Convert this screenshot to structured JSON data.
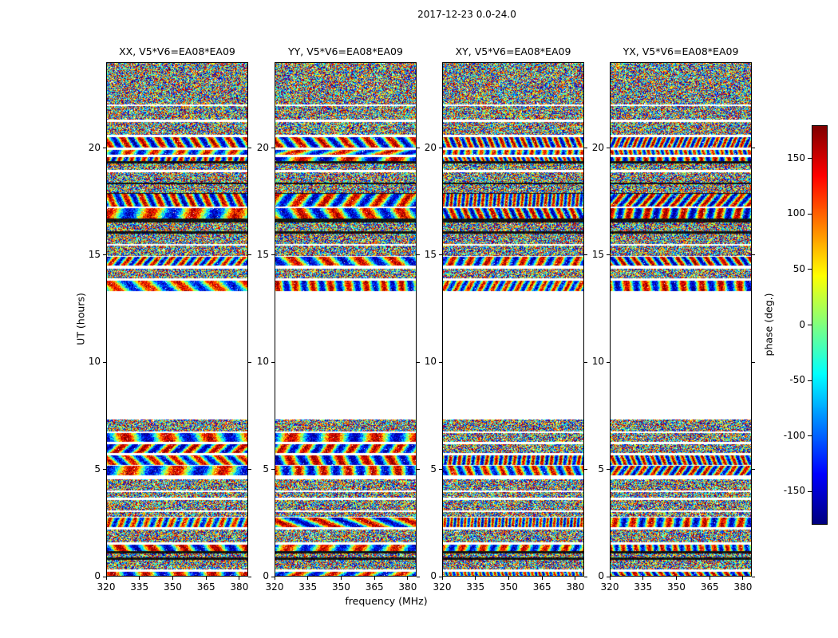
{
  "figure": {
    "title": "2017-12-23 0.0-24.0",
    "xlabel": "frequency (MHz)",
    "ylabel": "UT (hours)",
    "colorbar_label": "phase (deg.)",
    "background": "#ffffff"
  },
  "chart_data": {
    "type": "heatmap",
    "title": "2017-12-23 0.0-24.0",
    "panels": [
      {
        "title": "XX, V5*V6=EA08*EA09"
      },
      {
        "title": "YY, V5*V6=EA08*EA09"
      },
      {
        "title": "XY, V5*V6=EA08*EA09"
      },
      {
        "title": "YX, V5*V6=EA08*EA09"
      }
    ],
    "x_axis": {
      "label": "frequency (MHz)",
      "range": [
        320,
        384
      ],
      "ticks": [
        320,
        335,
        350,
        365,
        380
      ]
    },
    "y_axis": {
      "label": "UT (hours)",
      "range": [
        0,
        24
      ],
      "ticks": [
        0,
        5,
        10,
        15,
        20
      ]
    },
    "colorbar": {
      "label": "phase (deg.)",
      "range": [
        -180,
        180
      ],
      "ticks": [
        150,
        100,
        50,
        0,
        -50,
        -100,
        -150
      ],
      "colormap": "jet"
    },
    "data_gap_ut_hours": [
      7.3,
      13.25
    ],
    "content": "Interferometric visibility phase (random-looking noise) versus frequency and UT time with horizontal banding; white region where no data was recorded between about UT 7.3 and 13.25."
  }
}
